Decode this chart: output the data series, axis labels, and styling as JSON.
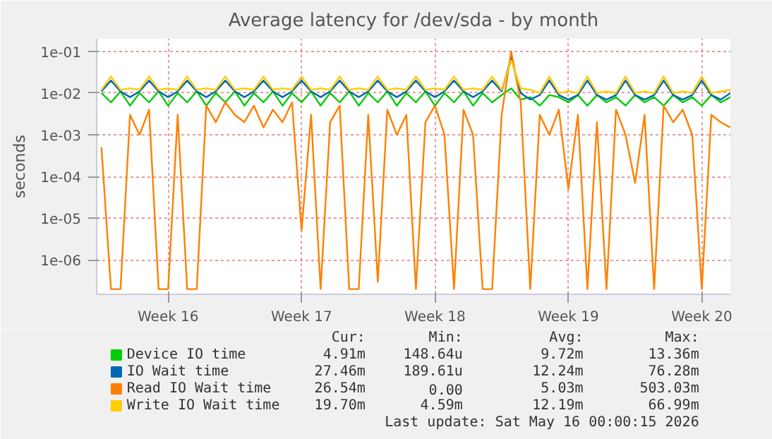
{
  "chart_data": {
    "type": "line",
    "title": "Average latency for /dev/sda - by month",
    "ylabel": "seconds",
    "x": [
      "2026-04-13T00:00",
      "2026-04-13T12:00",
      "2026-04-14T00:00",
      "2026-04-14T12:00",
      "2026-04-15T00:00",
      "2026-04-15T12:00",
      "2026-04-16T00:00",
      "2026-04-16T12:00",
      "2026-04-17T00:00",
      "2026-04-17T12:00",
      "2026-04-18T00:00",
      "2026-04-18T12:00",
      "2026-04-19T00:00",
      "2026-04-19T12:00",
      "2026-04-20T00:00",
      "2026-04-20T12:00",
      "2026-04-21T00:00",
      "2026-04-21T12:00",
      "2026-04-22T00:00",
      "2026-04-22T12:00",
      "2026-04-23T00:00",
      "2026-04-23T12:00",
      "2026-04-24T00:00",
      "2026-04-24T12:00",
      "2026-04-25T00:00",
      "2026-04-25T12:00",
      "2026-04-26T00:00",
      "2026-04-26T12:00",
      "2026-04-27T00:00",
      "2026-04-27T12:00",
      "2026-04-28T00:00",
      "2026-04-28T12:00",
      "2026-04-29T00:00",
      "2026-04-29T12:00",
      "2026-04-30T00:00",
      "2026-04-30T12:00",
      "2026-05-01T00:00",
      "2026-05-01T12:00",
      "2026-05-02T00:00",
      "2026-05-02T12:00",
      "2026-05-03T00:00",
      "2026-05-03T12:00",
      "2026-05-04T00:00",
      "2026-05-04T12:00",
      "2026-05-05T00:00",
      "2026-05-05T12:00",
      "2026-05-06T00:00",
      "2026-05-06T12:00",
      "2026-05-07T00:00",
      "2026-05-07T12:00",
      "2026-05-08T00:00",
      "2026-05-08T12:00",
      "2026-05-09T00:00",
      "2026-05-09T12:00",
      "2026-05-10T00:00",
      "2026-05-10T12:00",
      "2026-05-11T00:00",
      "2026-05-11T12:00",
      "2026-05-12T00:00",
      "2026-05-12T12:00",
      "2026-05-13T00:00",
      "2026-05-13T12:00",
      "2026-05-14T00:00",
      "2026-05-14T12:00",
      "2026-05-15T00:00",
      "2026-05-15T12:00",
      "2026-05-16T00:00"
    ],
    "series": [
      {
        "name": "Device IO time",
        "color": "#00cc00",
        "values": [
          0.01,
          0.006,
          0.011,
          0.005,
          0.01,
          0.006,
          0.011,
          0.005,
          0.01,
          0.006,
          0.011,
          0.005,
          0.01,
          0.006,
          0.011,
          0.005,
          0.01,
          0.006,
          0.011,
          0.005,
          0.01,
          0.006,
          0.011,
          0.005,
          0.01,
          0.006,
          0.011,
          0.005,
          0.01,
          0.006,
          0.011,
          0.005,
          0.01,
          0.006,
          0.011,
          0.005,
          0.01,
          0.006,
          0.011,
          0.005,
          0.01,
          0.006,
          0.009,
          0.013,
          0.007,
          0.008,
          0.005,
          0.009,
          0.008,
          0.006,
          0.009,
          0.005,
          0.009,
          0.006,
          0.008,
          0.005,
          0.009,
          0.006,
          0.008,
          0.005,
          0.009,
          0.006,
          0.008,
          0.005,
          0.009,
          0.006,
          0.008
        ]
      },
      {
        "name": "IO Wait time",
        "color": "#0066b3",
        "values": [
          0.011,
          0.02,
          0.011,
          0.008,
          0.011,
          0.02,
          0.011,
          0.008,
          0.011,
          0.02,
          0.011,
          0.008,
          0.011,
          0.02,
          0.011,
          0.008,
          0.011,
          0.02,
          0.011,
          0.008,
          0.011,
          0.02,
          0.011,
          0.008,
          0.011,
          0.02,
          0.011,
          0.008,
          0.011,
          0.02,
          0.011,
          0.008,
          0.011,
          0.02,
          0.011,
          0.008,
          0.011,
          0.02,
          0.011,
          0.008,
          0.011,
          0.02,
          0.011,
          0.07,
          0.01,
          0.007,
          0.009,
          0.02,
          0.009,
          0.007,
          0.009,
          0.02,
          0.009,
          0.007,
          0.009,
          0.02,
          0.009,
          0.007,
          0.009,
          0.02,
          0.009,
          0.007,
          0.009,
          0.02,
          0.009,
          0.007,
          0.01
        ]
      },
      {
        "name": "Read IO Wait time",
        "color": "#ff8000",
        "values": [
          0.0005,
          2e-07,
          2e-07,
          0.003,
          0.001,
          0.004,
          2e-07,
          2e-07,
          0.003,
          2e-07,
          2e-07,
          0.005,
          0.002,
          0.006,
          0.003,
          0.002,
          0.005,
          0.0015,
          0.004,
          0.002,
          0.006,
          5e-06,
          0.003,
          2e-07,
          0.002,
          0.005,
          2e-07,
          2e-07,
          0.003,
          3e-07,
          0.004,
          0.001,
          0.003,
          2e-07,
          0.002,
          0.005,
          0.001,
          2e-07,
          0.004,
          0.001,
          2e-07,
          2e-07,
          0.003,
          0.1,
          0.006,
          2e-07,
          0.003,
          0.001,
          0.004,
          5e-05,
          0.003,
          2e-07,
          0.002,
          2e-07,
          0.004,
          0.001,
          7e-05,
          0.003,
          2e-07,
          0.005,
          0.002,
          0.004,
          0.001,
          2e-07,
          0.003,
          0.002,
          0.0015
        ]
      },
      {
        "name": "Write IO Wait time",
        "color": "#ffcc00",
        "values": [
          0.012,
          0.025,
          0.012,
          0.013,
          0.012,
          0.025,
          0.012,
          0.013,
          0.012,
          0.025,
          0.012,
          0.013,
          0.012,
          0.025,
          0.012,
          0.013,
          0.012,
          0.025,
          0.012,
          0.013,
          0.012,
          0.025,
          0.012,
          0.013,
          0.012,
          0.025,
          0.012,
          0.013,
          0.012,
          0.025,
          0.012,
          0.013,
          0.012,
          0.025,
          0.012,
          0.013,
          0.012,
          0.025,
          0.012,
          0.013,
          0.012,
          0.025,
          0.012,
          0.06,
          0.013,
          0.012,
          0.01,
          0.025,
          0.01,
          0.011,
          0.01,
          0.025,
          0.01,
          0.011,
          0.01,
          0.025,
          0.01,
          0.011,
          0.01,
          0.025,
          0.01,
          0.011,
          0.01,
          0.025,
          0.01,
          0.011,
          0.012
        ]
      }
    ],
    "log": "y",
    "ylim": [
      1.5e-07,
      0.2
    ],
    "yticks": [
      {
        "value": 1e-06,
        "label": "1e-06"
      },
      {
        "value": 1e-05,
        "label": "1e-05"
      },
      {
        "value": 0.0001,
        "label": "1e-04"
      },
      {
        "value": 0.001,
        "label": "1e-03"
      },
      {
        "value": 0.01,
        "label": "1e-02"
      },
      {
        "value": 0.1,
        "label": "1e-01"
      }
    ],
    "xlim": [
      "2026-04-12T18:00",
      "2026-05-16T00:00"
    ],
    "xticks": [
      {
        "value": "2026-04-16T12:00",
        "label": "Week 16"
      },
      {
        "value": "2026-04-23T12:00",
        "label": "Week 17"
      },
      {
        "value": "2026-04-30T12:00",
        "label": "Week 18"
      },
      {
        "value": "2026-05-07T12:00",
        "label": "Week 19"
      },
      {
        "value": "2026-05-14T12:00",
        "label": "Week 20"
      }
    ],
    "grid": true,
    "legend": "bottom",
    "annotations": [
      "Cur:",
      "Min:",
      "Avg:",
      "Max:",
      "4.91m",
      "148.64u",
      "9.72m",
      "13.36m",
      "27.46m",
      "189.61u",
      "12.24m",
      "76.28m",
      "26.54m",
      "0.00",
      "5.03m",
      "503.03m",
      "19.70m",
      "4.59m",
      "12.19m",
      "66.99m",
      "Last update: Sat May 16 00:00:15 2026"
    ]
  }
}
